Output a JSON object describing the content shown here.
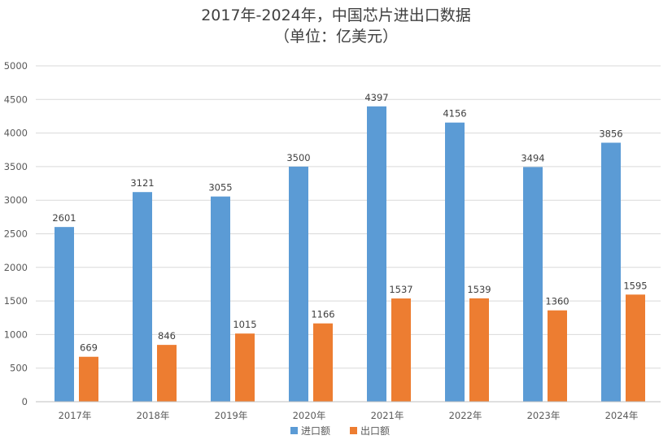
{
  "chart_data": {
    "type": "bar",
    "title": "2017年-2024年，中国芯片进出口数据",
    "subtitle": "（单位：亿美元）",
    "categories": [
      "2017年",
      "2018年",
      "2019年",
      "2020年",
      "2021年",
      "2022年",
      "2023年",
      "2024年"
    ],
    "series": [
      {
        "name": "进口额",
        "color": "#5B9BD5",
        "values": [
          2601,
          3121,
          3055,
          3500,
          4397,
          4156,
          3494,
          3856
        ]
      },
      {
        "name": "出口额",
        "color": "#ED7D31",
        "values": [
          669,
          846,
          1015,
          1166,
          1537,
          1539,
          1360,
          1595
        ]
      }
    ],
    "ylim": [
      0,
      5000
    ],
    "yticks": [
      "0",
      "500",
      "1000",
      "1500",
      "2000",
      "2500",
      "3000",
      "3500",
      "4000",
      "4500",
      "5000"
    ],
    "data_labels": true,
    "grid": true,
    "legend": "bottom-center",
    "xlabel": "",
    "ylabel": ""
  }
}
